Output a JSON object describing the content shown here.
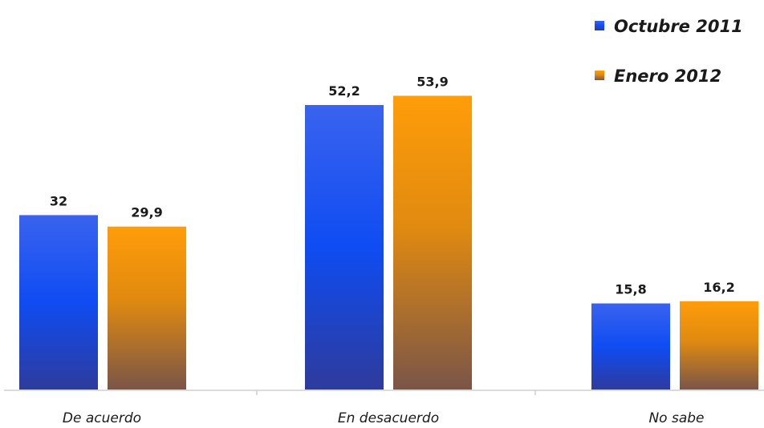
{
  "chart_data": {
    "type": "bar",
    "categories": [
      "De acuerdo",
      "En desacuerdo",
      "No sabe"
    ],
    "series": [
      {
        "name": "Octubre 2011",
        "values": [
          32,
          52.2,
          15.8
        ],
        "value_labels": [
          "32",
          "52,2",
          "15,8"
        ]
      },
      {
        "name": "Enero 2012",
        "values": [
          29.9,
          53.9,
          16.2
        ],
        "value_labels": [
          "29,9",
          "53,9",
          "16,2"
        ]
      }
    ],
    "ylim": [
      0,
      60
    ],
    "grid": false,
    "legend_position": "top-right",
    "colors": {
      "Octubre 2011": {
        "top": "#3a63ee",
        "mid": "#0f4cf2",
        "bottom": "#2e3b9c"
      },
      "Enero 2012": {
        "top": "#ff9d0a",
        "mid": "#e08a10",
        "bottom": "#7a5548"
      },
      "axis": "#cfcfcf"
    }
  }
}
